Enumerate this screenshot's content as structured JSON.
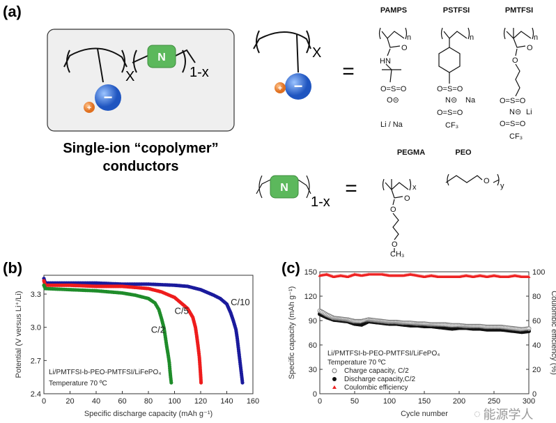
{
  "panel_a": {
    "label": "(a)",
    "caption_line1": "Single-ion “copolymer”",
    "caption_line2": "conductors",
    "subscript_x": "X",
    "subscript_1mx": "1-x",
    "neutral_block": "N",
    "anion_sign": "−",
    "cation_sign": "+",
    "equals": "=",
    "structures": {
      "pamps": {
        "name": "PAMPS",
        "atoms": [
          "O",
          "HN",
          "O=S=O",
          "O⊝",
          "Li / Na",
          "n"
        ]
      },
      "pstfsi": {
        "name": "PSTFSI",
        "atoms": [
          "O=S=O",
          "N⊝",
          "Na",
          "O=S=O",
          "CF₃",
          "n"
        ]
      },
      "pmtfsi": {
        "name": "PMTFSI",
        "atoms": [
          "O",
          "O",
          "O=S=O",
          "N⊝",
          "Li",
          "O=S=O",
          "CF₃",
          "n"
        ]
      },
      "pegma": {
        "name": "PEGMA",
        "atoms": [
          "O",
          "O",
          "O",
          "CH₃",
          "x",
          "n"
        ]
      },
      "peo": {
        "name": "PEO",
        "atoms": [
          "O",
          "y"
        ]
      }
    },
    "colors": {
      "anion": "#2f6fd6",
      "cation": "#f08a3c",
      "neutral": "#5cb85c",
      "box": "#efefef"
    }
  },
  "chart_data": [
    {
      "panel_label": "(b)",
      "type": "line",
      "xlabel": "Specific discharge capacity (mAh g⁻¹)",
      "ylabel": "Potential (V versus Li⁺/Li)",
      "xlim": [
        0,
        160
      ],
      "ylim": [
        2.4,
        3.47
      ],
      "xticks": [
        "0",
        "20",
        "40",
        "60",
        "80",
        "100",
        "120",
        "140",
        "160"
      ],
      "yticks": [
        "2.4",
        "2.7",
        "3.0",
        "3.3"
      ],
      "annotation_line1": "Li/PMTFSI-b-PEO-PMTFSI/LiFePO₄",
      "annotation_line2": "Temperature 70 ºC",
      "grid": false,
      "series": [
        {
          "name": "C/10",
          "color": "#1a1a9c",
          "x": [
            0,
            1,
            20,
            40,
            60,
            80,
            100,
            110,
            120,
            130,
            135,
            140,
            143,
            145,
            147,
            148,
            149,
            150,
            151,
            152
          ],
          "y": [
            3.44,
            3.4,
            3.4,
            3.4,
            3.39,
            3.39,
            3.38,
            3.37,
            3.34,
            3.29,
            3.26,
            3.21,
            3.13,
            3.06,
            2.98,
            2.9,
            2.8,
            2.7,
            2.6,
            2.5
          ]
        },
        {
          "name": "C/5",
          "color": "#ee1c1c",
          "x": [
            0,
            1,
            20,
            40,
            60,
            80,
            90,
            100,
            105,
            110,
            114,
            116,
            117,
            118,
            119,
            119.5,
            120,
            120.3
          ],
          "y": [
            3.42,
            3.38,
            3.38,
            3.37,
            3.37,
            3.35,
            3.32,
            3.27,
            3.22,
            3.17,
            3.09,
            3.0,
            2.92,
            2.83,
            2.73,
            2.65,
            2.56,
            2.5
          ]
        },
        {
          "name": "C/2",
          "color": "#1f8c2a",
          "x": [
            0,
            1,
            20,
            40,
            60,
            70,
            80,
            85,
            88,
            90,
            92,
            93,
            94,
            95,
            96,
            96.5,
            97,
            97.5
          ],
          "y": [
            3.38,
            3.35,
            3.34,
            3.33,
            3.31,
            3.29,
            3.26,
            3.22,
            3.16,
            3.08,
            2.99,
            2.91,
            2.83,
            2.76,
            2.68,
            2.61,
            2.55,
            2.5
          ]
        }
      ]
    },
    {
      "panel_label": "(c)",
      "type": "scatter",
      "xlabel": "Cycle number",
      "ylabel": "Specific capacity (mAh g⁻¹)",
      "ylabel_right": "Coulombic efficiency (%)",
      "xlim": [
        0,
        300
      ],
      "ylim": [
        0,
        150
      ],
      "ylim_right": [
        0,
        100
      ],
      "xticks": [
        "0",
        "50",
        "100",
        "150",
        "200",
        "250",
        "300"
      ],
      "yticks": [
        "0",
        "30",
        "60",
        "90",
        "120",
        "150"
      ],
      "yticks_right": [
        "0",
        "20",
        "40",
        "60",
        "80",
        "100"
      ],
      "annotation_line1": "Li/PMTFSI-b-PEO-PMTFSI/LiFePO₄",
      "annotation_line2": "Temperature 70 ºC",
      "legend_position": "bottom-left",
      "grid": false,
      "x": [
        0,
        10,
        20,
        30,
        40,
        50,
        60,
        70,
        80,
        90,
        100,
        110,
        120,
        130,
        140,
        150,
        160,
        170,
        180,
        190,
        200,
        210,
        220,
        230,
        240,
        250,
        260,
        270,
        280,
        290,
        300
      ],
      "series": [
        {
          "name": "Charge capacity, C/2",
          "marker": "open-circle",
          "color": "#777777",
          "axis": "left",
          "values": [
            102,
            97,
            93,
            92,
            91,
            89,
            89,
            91,
            90,
            89,
            88,
            88,
            87,
            87,
            86,
            86,
            85,
            85,
            85,
            84,
            84,
            83,
            83,
            83,
            82,
            82,
            82,
            81,
            80,
            79,
            80
          ]
        },
        {
          "name": "Discharge capacity,C/2",
          "marker": "filled-circle",
          "color": "#111111",
          "axis": "left",
          "values": [
            98,
            94,
            91,
            90,
            89,
            86,
            85,
            89,
            88,
            87,
            86,
            86,
            85,
            84,
            84,
            83,
            83,
            82,
            81,
            80,
            81,
            81,
            80,
            80,
            79,
            79,
            79,
            78,
            77,
            76,
            77
          ]
        },
        {
          "name": "Coulombic efficiency",
          "marker": "triangle",
          "color": "#ee2222",
          "axis": "right",
          "values": [
            97,
            98,
            96,
            97,
            96,
            98,
            97,
            98,
            98,
            98,
            97,
            97,
            97,
            98,
            97,
            96,
            97,
            96,
            96,
            96,
            96,
            97,
            96,
            97,
            96,
            97,
            96,
            96,
            97,
            96,
            96
          ]
        }
      ]
    }
  ],
  "watermark": {
    "text": "能源学人",
    "icon": "wechat-icon"
  }
}
